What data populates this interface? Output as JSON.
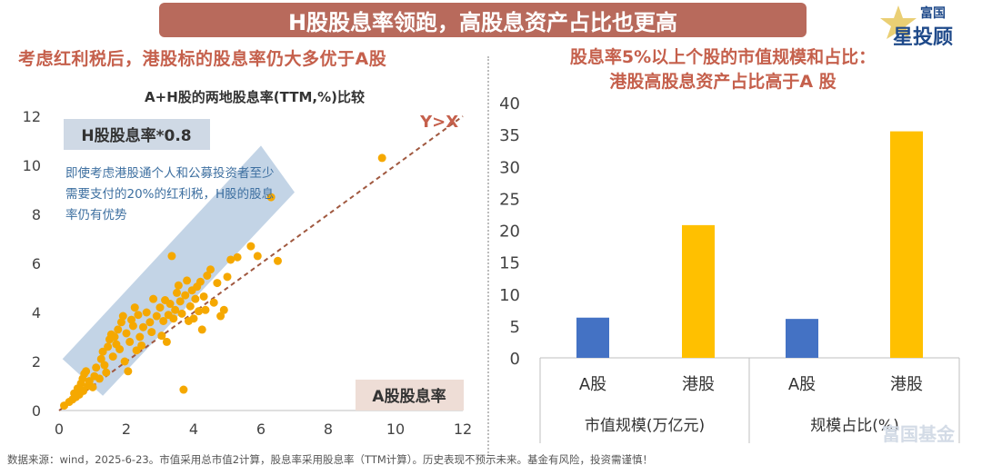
{
  "banner": "H股股息率领跑，高股息资产占比也更高",
  "logo": {
    "top": "富国",
    "main": "星投顾"
  },
  "left_title": "考虑红利税后，港股标的股息率仍大多优于A股",
  "right_title_line1": "股息率5%以上个股的市值规模和占比：",
  "right_title_line2": "港股高股息资产占比高于A 股",
  "annotation": "即使考虑港股通个人和公募投资者至少需要支付的20%的红利税，H股的股息率仍有优势",
  "footer": "数据来源：wind，2025-6-23。市值采用总市值2计算，股息率采用股息率（TTM计算）。历史表现不预示未来。基金有风险，投资需谨慎！",
  "watermark": "富国基金",
  "colors": {
    "banner": "#b86a5c",
    "title_red": "#c5604c",
    "scatter": "#f5a800",
    "band": "#b8cde2",
    "trend": "#a0583f",
    "bar_a": "#4472c4",
    "bar_h": "#ffc000",
    "label_box": "#cfd9e5",
    "label_box_alt": "#eeddd6"
  },
  "chart_data": [
    {
      "type": "scatter",
      "title": "A+H股的两地股息率(TTM,%)比较",
      "y_label_box": "H股股息率*0.8",
      "x_label_box": "A股股息率",
      "reference_line_label": "Y>X",
      "xlim": [
        0,
        12
      ],
      "ylim": [
        0,
        12
      ],
      "xticks": [
        0,
        2,
        4,
        6,
        8,
        10,
        12
      ],
      "yticks": [
        0,
        2,
        4,
        6,
        8,
        10,
        12
      ],
      "grid": false,
      "points": [
        [
          0.15,
          0.2
        ],
        [
          0.3,
          0.35
        ],
        [
          0.4,
          0.45
        ],
        [
          0.45,
          0.7
        ],
        [
          0.5,
          0.55
        ],
        [
          0.55,
          0.9
        ],
        [
          0.6,
          0.65
        ],
        [
          0.65,
          1.1
        ],
        [
          0.7,
          1.3
        ],
        [
          0.72,
          0.8
        ],
        [
          0.75,
          1.5
        ],
        [
          0.8,
          1.6
        ],
        [
          0.85,
          1.0
        ],
        [
          0.9,
          1.2
        ],
        [
          1.0,
          0.95
        ],
        [
          1.05,
          1.4
        ],
        [
          1.1,
          1.75
        ],
        [
          1.2,
          1.3
        ],
        [
          1.25,
          2.1
        ],
        [
          1.3,
          2.4
        ],
        [
          1.35,
          1.85
        ],
        [
          1.4,
          1.55
        ],
        [
          1.45,
          2.6
        ],
        [
          1.5,
          2.9
        ],
        [
          1.55,
          3.1
        ],
        [
          1.6,
          2.2
        ],
        [
          1.65,
          3.0
        ],
        [
          1.7,
          2.7
        ],
        [
          1.75,
          3.3
        ],
        [
          1.8,
          2.5
        ],
        [
          1.85,
          3.6
        ],
        [
          1.9,
          3.85
        ],
        [
          1.95,
          2.0
        ],
        [
          2.0,
          3.15
        ],
        [
          2.05,
          1.6
        ],
        [
          2.1,
          2.8
        ],
        [
          2.15,
          3.7
        ],
        [
          2.2,
          3.45
        ],
        [
          2.25,
          4.2
        ],
        [
          2.3,
          2.45
        ],
        [
          2.35,
          3.9
        ],
        [
          2.4,
          3.0
        ],
        [
          2.45,
          2.65
        ],
        [
          2.5,
          3.4
        ],
        [
          2.6,
          4.0
        ],
        [
          2.7,
          3.6
        ],
        [
          2.75,
          3.2
        ],
        [
          2.8,
          4.55
        ],
        [
          2.9,
          3.85
        ],
        [
          3.0,
          4.2
        ],
        [
          3.05,
          3.05
        ],
        [
          3.1,
          3.65
        ],
        [
          3.15,
          4.5
        ],
        [
          3.2,
          2.8
        ],
        [
          3.25,
          3.9
        ],
        [
          3.3,
          4.35
        ],
        [
          3.35,
          6.3
        ],
        [
          3.4,
          3.75
        ],
        [
          3.45,
          4.1
        ],
        [
          3.5,
          4.8
        ],
        [
          3.55,
          5.1
        ],
        [
          3.6,
          4.45
        ],
        [
          3.65,
          3.95
        ],
        [
          3.7,
          0.85
        ],
        [
          3.75,
          4.7
        ],
        [
          3.8,
          5.3
        ],
        [
          3.85,
          3.65
        ],
        [
          3.9,
          4.25
        ],
        [
          3.95,
          4.9
        ],
        [
          4.0,
          3.75
        ],
        [
          4.05,
          4.55
        ],
        [
          4.1,
          5.05
        ],
        [
          4.15,
          4.05
        ],
        [
          4.2,
          5.25
        ],
        [
          4.25,
          3.3
        ],
        [
          4.3,
          4.65
        ],
        [
          4.35,
          4.1
        ],
        [
          4.4,
          5.5
        ],
        [
          4.5,
          5.75
        ],
        [
          4.6,
          4.4
        ],
        [
          4.7,
          5.2
        ],
        [
          4.8,
          3.85
        ],
        [
          4.9,
          4.1
        ],
        [
          5.0,
          5.45
        ],
        [
          5.1,
          6.15
        ],
        [
          5.3,
          6.25
        ],
        [
          5.7,
          6.7
        ],
        [
          5.9,
          6.3
        ],
        [
          6.3,
          8.7
        ],
        [
          6.5,
          6.1
        ],
        [
          9.6,
          10.3
        ]
      ]
    },
    {
      "type": "bar",
      "title": "股息率5%以上个股的市值规模和占比",
      "groups": [
        "市值规模(万亿元)",
        "规模占比(%)"
      ],
      "categories": [
        "A股",
        "港股",
        "A股",
        "港股"
      ],
      "series": [
        {
          "values": [
            6.3,
            20.8,
            6.1,
            35.5
          ]
        }
      ],
      "ylim": [
        0,
        40
      ],
      "yticks": [
        0,
        5,
        10,
        15,
        20,
        25,
        30,
        35,
        40
      ],
      "grid": false
    }
  ]
}
